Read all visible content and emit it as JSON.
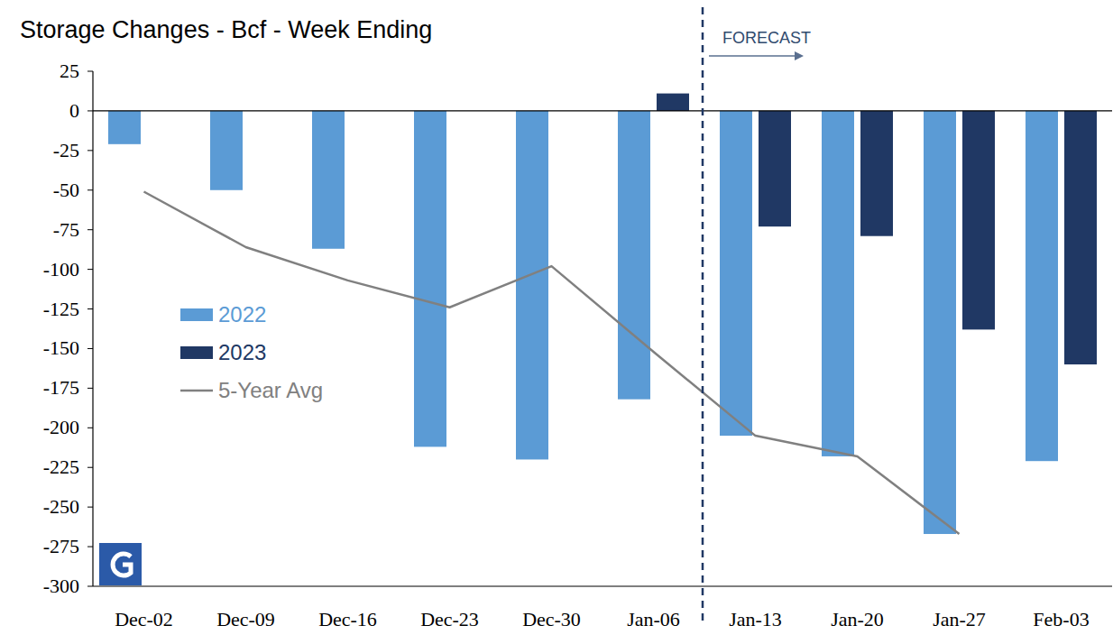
{
  "chart_data": {
    "type": "bar",
    "title": "Storage Changes - Bcf - Week Ending",
    "categories": [
      "Dec-02",
      "Dec-09",
      "Dec-16",
      "Dec-23",
      "Dec-30",
      "Jan-06",
      "Jan-13",
      "Jan-20",
      "Jan-27",
      "Feb-03"
    ],
    "series": [
      {
        "name": "2022",
        "type": "bar",
        "color": "#5b9bd5",
        "values": [
          -21,
          -50,
          -87,
          -212,
          -220,
          -182,
          -205,
          -218,
          -267,
          -221
        ]
      },
      {
        "name": "2023",
        "type": "bar",
        "color": "#203864",
        "values": [
          null,
          null,
          null,
          null,
          null,
          11,
          -73,
          -79,
          -138,
          -160
        ]
      },
      {
        "name": "5-Year Avg",
        "type": "line",
        "color": "#808080",
        "values": [
          -51,
          -86,
          -107,
          -124,
          -98,
          -152,
          -205,
          -218,
          -267,
          null
        ]
      }
    ],
    "annotations": [
      {
        "text": "FORECAST",
        "x": "Jan-13"
      }
    ],
    "ylim": [
      -300,
      25
    ],
    "yticks": [
      25,
      0,
      -25,
      -50,
      -75,
      -100,
      -125,
      -150,
      -175,
      -200,
      -225,
      -250,
      -275,
      -300
    ],
    "grid": false,
    "legend": "left"
  }
}
